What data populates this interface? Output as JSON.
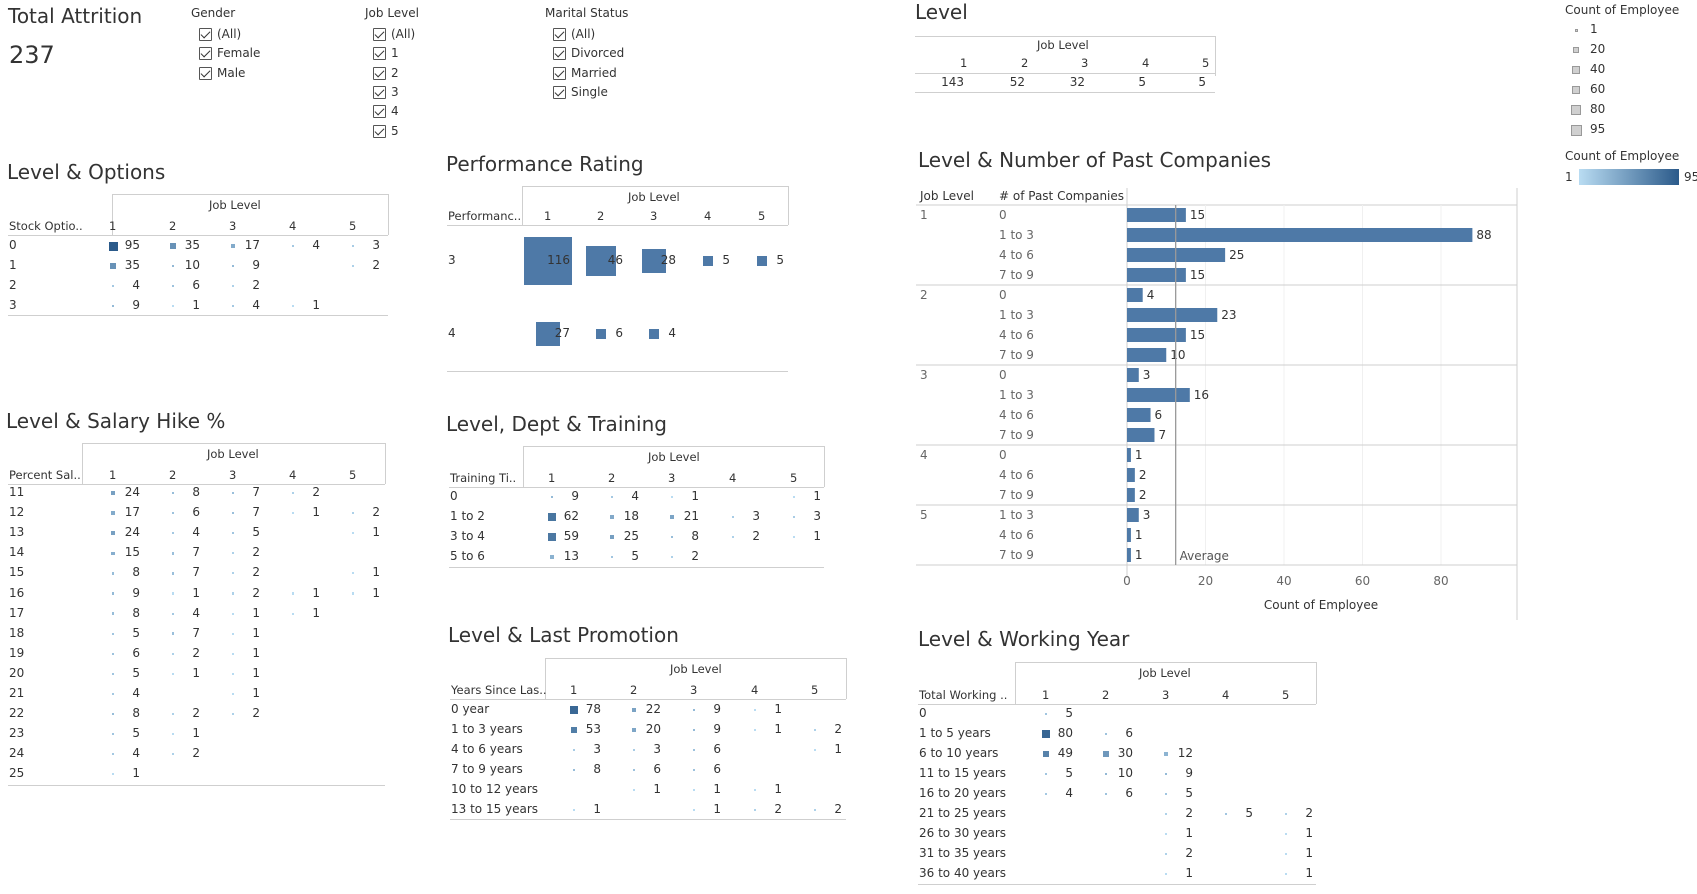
{
  "kpi": {
    "title": "Total Attrition",
    "value": "237"
  },
  "filters": [
    {
      "id": "gender",
      "title": "Gender",
      "items": [
        "(All)",
        "Female",
        "Male"
      ]
    },
    {
      "id": "joblevel",
      "title": "Job Level",
      "items": [
        "(All)",
        "1",
        "2",
        "3",
        "4",
        "5"
      ]
    },
    {
      "id": "marital",
      "title": "Marital Status",
      "items": [
        "(All)",
        "Divorced",
        "Married",
        "Single"
      ]
    }
  ],
  "legend": {
    "size_title": "Count of Employee",
    "size_items": [
      "1",
      "20",
      "40",
      "60",
      "80",
      "95"
    ],
    "color_title": "Count of Employee",
    "color_min": "1",
    "color_max": "95",
    "color_low": "#b9dcf2",
    "color_high": "#2b5a8a"
  },
  "colors": {
    "mark": "#4e79a7",
    "axis": "#cfcfcf",
    "average_line": "#999999"
  },
  "level": {
    "title": "Level",
    "col_header": "Job Level",
    "columns": [
      "1",
      "2",
      "3",
      "4",
      "5"
    ],
    "values": [
      "143",
      "52",
      "32",
      "5",
      "5"
    ]
  },
  "options": {
    "title": "Level & Options",
    "col_header": "Job Level",
    "row_header": "Stock Optio..",
    "columns": [
      "1",
      "2",
      "3",
      "4",
      "5"
    ],
    "rows": [
      {
        "label": "0",
        "values": [
          95,
          35,
          17,
          4,
          3
        ]
      },
      {
        "label": "1",
        "values": [
          35,
          10,
          9,
          null,
          2
        ]
      },
      {
        "label": "2",
        "values": [
          4,
          6,
          2,
          null,
          null
        ]
      },
      {
        "label": "3",
        "values": [
          9,
          1,
          4,
          1,
          null
        ]
      }
    ]
  },
  "salary": {
    "title": "Level & Salary Hike %",
    "col_header": "Job Level",
    "row_header": "Percent Sal..",
    "columns": [
      "1",
      "2",
      "3",
      "4",
      "5"
    ],
    "rows": [
      {
        "label": "11",
        "values": [
          24,
          8,
          7,
          2,
          null
        ]
      },
      {
        "label": "12",
        "values": [
          17,
          6,
          7,
          1,
          2
        ]
      },
      {
        "label": "13",
        "values": [
          24,
          4,
          5,
          null,
          1
        ]
      },
      {
        "label": "14",
        "values": [
          15,
          7,
          2,
          null,
          null
        ]
      },
      {
        "label": "15",
        "values": [
          8,
          7,
          2,
          null,
          1
        ]
      },
      {
        "label": "16",
        "values": [
          9,
          1,
          2,
          1,
          1
        ]
      },
      {
        "label": "17",
        "values": [
          8,
          4,
          1,
          1,
          null
        ]
      },
      {
        "label": "18",
        "values": [
          5,
          7,
          1,
          null,
          null
        ]
      },
      {
        "label": "19",
        "values": [
          6,
          2,
          1,
          null,
          null
        ]
      },
      {
        "label": "20",
        "values": [
          5,
          1,
          1,
          null,
          null
        ]
      },
      {
        "label": "21",
        "values": [
          4,
          null,
          1,
          null,
          null
        ]
      },
      {
        "label": "22",
        "values": [
          8,
          2,
          2,
          null,
          null
        ]
      },
      {
        "label": "23",
        "values": [
          5,
          1,
          null,
          null,
          null
        ]
      },
      {
        "label": "24",
        "values": [
          4,
          2,
          null,
          null,
          null
        ]
      },
      {
        "label": "25",
        "values": [
          1,
          null,
          null,
          null,
          null
        ]
      }
    ]
  },
  "performance": {
    "title": "Performance Rating",
    "col_header": "Job Level",
    "row_header": "Performanc..",
    "columns": [
      "1",
      "2",
      "3",
      "4",
      "5"
    ],
    "rows": [
      {
        "label": "3",
        "values": [
          116,
          46,
          28,
          5,
          5
        ]
      },
      {
        "label": "4",
        "values": [
          27,
          6,
          4,
          null,
          null
        ]
      }
    ]
  },
  "training": {
    "title": "Level, Dept & Training",
    "col_header": "Job Level",
    "row_header": "Training Ti..",
    "columns": [
      "1",
      "2",
      "3",
      "4",
      "5"
    ],
    "rows": [
      {
        "label": "0",
        "values": [
          9,
          4,
          1,
          null,
          1
        ]
      },
      {
        "label": "1 to 2",
        "values": [
          62,
          18,
          21,
          3,
          3
        ]
      },
      {
        "label": "3 to 4",
        "values": [
          59,
          25,
          8,
          2,
          1
        ]
      },
      {
        "label": "5 to 6",
        "values": [
          13,
          5,
          2,
          null,
          null
        ]
      }
    ]
  },
  "promotion": {
    "title": "Level & Last Promotion",
    "col_header": "Job Level",
    "row_header": "Years Since Las..",
    "columns": [
      "1",
      "2",
      "3",
      "4",
      "5"
    ],
    "rows": [
      {
        "label": "0 year",
        "values": [
          78,
          22,
          9,
          1,
          null
        ]
      },
      {
        "label": "1 to 3 years",
        "values": [
          53,
          20,
          9,
          1,
          2
        ]
      },
      {
        "label": "4 to 6 years",
        "values": [
          3,
          3,
          6,
          null,
          1
        ]
      },
      {
        "label": "7 to 9 years",
        "values": [
          8,
          6,
          6,
          null,
          null
        ]
      },
      {
        "label": "10 to 12 years",
        "values": [
          null,
          1,
          1,
          1,
          null
        ]
      },
      {
        "label": "13 to 15 years",
        "values": [
          1,
          null,
          1,
          2,
          2
        ]
      }
    ]
  },
  "working": {
    "title": "Level & Working Year",
    "col_header": "Job Level",
    "row_header": "Total Working ..",
    "columns": [
      "1",
      "2",
      "3",
      "4",
      "5"
    ],
    "rows": [
      {
        "label": "0",
        "values": [
          5,
          null,
          null,
          null,
          null
        ]
      },
      {
        "label": "1 to 5 years",
        "values": [
          80,
          6,
          null,
          null,
          null
        ]
      },
      {
        "label": "6 to 10 years",
        "values": [
          49,
          30,
          12,
          null,
          null
        ]
      },
      {
        "label": "11 to 15 years",
        "values": [
          5,
          10,
          9,
          null,
          null
        ]
      },
      {
        "label": "16 to 20 years",
        "values": [
          4,
          6,
          5,
          null,
          null
        ]
      },
      {
        "label": "21 to 25 years",
        "values": [
          null,
          null,
          2,
          5,
          2
        ]
      },
      {
        "label": "26 to 30 years",
        "values": [
          null,
          null,
          1,
          null,
          1
        ]
      },
      {
        "label": "31 to 35 years",
        "values": [
          null,
          null,
          2,
          null,
          1
        ]
      },
      {
        "label": "36 to 40 years",
        "values": [
          null,
          null,
          1,
          null,
          1
        ]
      }
    ]
  },
  "chart_data": {
    "type": "bar",
    "title": "Level & Number of Past Companies",
    "xlabel": "Count of Employee",
    "row_headers": [
      "Job Level",
      "# of Past Companies"
    ],
    "xlim": [
      0,
      95
    ],
    "xticks": [
      "0",
      "20",
      "40",
      "60",
      "80"
    ],
    "reference_line": {
      "label": "Average",
      "value": 12.4
    },
    "groups": [
      {
        "level": "1",
        "bars": [
          {
            "label": "0",
            "value": 15
          },
          {
            "label": "1 to 3",
            "value": 88
          },
          {
            "label": "4 to 6",
            "value": 25
          },
          {
            "label": "7 to 9",
            "value": 15
          }
        ]
      },
      {
        "level": "2",
        "bars": [
          {
            "label": "0",
            "value": 4
          },
          {
            "label": "1 to 3",
            "value": 23
          },
          {
            "label": "4 to 6",
            "value": 15
          },
          {
            "label": "7 to 9",
            "value": 10
          }
        ]
      },
      {
        "level": "3",
        "bars": [
          {
            "label": "0",
            "value": 3
          },
          {
            "label": "1 to 3",
            "value": 16
          },
          {
            "label": "4 to 6",
            "value": 6
          },
          {
            "label": "7 to 9",
            "value": 7
          }
        ]
      },
      {
        "level": "4",
        "bars": [
          {
            "label": "0",
            "value": 1
          },
          {
            "label": "4 to 6",
            "value": 2
          },
          {
            "label": "7 to 9",
            "value": 2
          }
        ]
      },
      {
        "level": "5",
        "bars": [
          {
            "label": "1 to 3",
            "value": 3
          },
          {
            "label": "4 to 6",
            "value": 1
          },
          {
            "label": "7 to 9",
            "value": 1
          }
        ]
      }
    ]
  }
}
